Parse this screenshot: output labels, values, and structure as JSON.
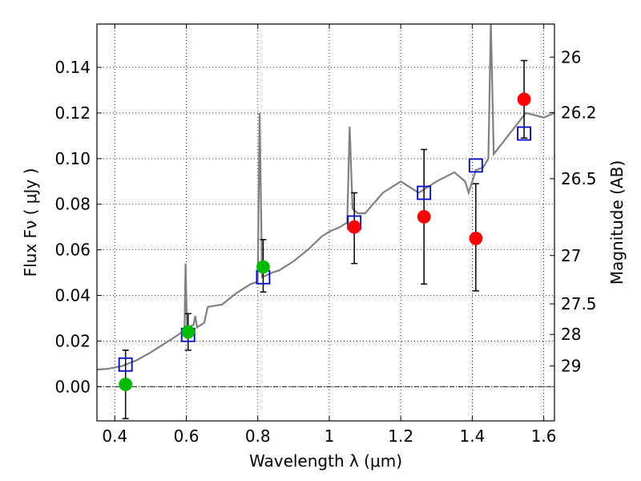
{
  "chart_data": {
    "type": "scatter",
    "xlabel": "Wavelength  λ (μm)",
    "ylabel_left": "Flux  Fν  ( μJy )",
    "ylabel_right": "Magnitude (AB)",
    "xlim": [
      0.35,
      1.63
    ],
    "ylim": [
      -0.015,
      0.159
    ],
    "x_ticks": [
      0.4,
      0.6,
      0.8,
      1.0,
      1.2,
      1.4,
      1.6
    ],
    "x_tick_labels": [
      "0.4",
      "0.6",
      "0.8",
      "1",
      "1.2",
      "1.4",
      "1.6"
    ],
    "y_ticks": [
      0.0,
      0.02,
      0.04,
      0.06,
      0.08,
      0.1,
      0.12,
      0.14
    ],
    "y_tick_labels": [
      "0.00",
      "0.02",
      "0.04",
      "0.06",
      "0.08",
      "0.10",
      "0.12",
      "0.14"
    ],
    "mag_ticks": [
      {
        "label": "26",
        "flux": 0.1445
      },
      {
        "label": "26.2",
        "flux": 0.1202
      },
      {
        "label": "26.5",
        "flux": 0.0912
      },
      {
        "label": "27",
        "flux": 0.0575
      },
      {
        "label": "27.5",
        "flux": 0.0363
      },
      {
        "label": "28",
        "flux": 0.0229
      },
      {
        "label": "29",
        "flux": 0.0091
      }
    ],
    "grid": true,
    "colors": {
      "spectrum": "#808080",
      "model_box": "#0000cc",
      "obs_green": "#00bb00",
      "obs_red": "#ff0000",
      "errorbar": "#000000"
    },
    "spectrum": [
      [
        0.35,
        0.0075
      ],
      [
        0.38,
        0.0078
      ],
      [
        0.42,
        0.009
      ],
      [
        0.46,
        0.0115
      ],
      [
        0.5,
        0.015
      ],
      [
        0.54,
        0.019
      ],
      [
        0.58,
        0.023
      ],
      [
        0.595,
        0.025
      ],
      [
        0.598,
        0.054
      ],
      [
        0.602,
        0.026
      ],
      [
        0.62,
        0.027
      ],
      [
        0.625,
        0.031
      ],
      [
        0.63,
        0.026
      ],
      [
        0.65,
        0.028
      ],
      [
        0.66,
        0.035
      ],
      [
        0.7,
        0.036
      ],
      [
        0.74,
        0.041
      ],
      [
        0.78,
        0.045
      ],
      [
        0.8,
        0.046
      ],
      [
        0.805,
        0.12
      ],
      [
        0.812,
        0.048
      ],
      [
        0.84,
        0.05
      ],
      [
        0.86,
        0.051
      ],
      [
        0.9,
        0.055
      ],
      [
        0.94,
        0.06
      ],
      [
        0.98,
        0.066
      ],
      [
        1.0,
        0.068
      ],
      [
        1.03,
        0.07
      ],
      [
        1.05,
        0.072
      ],
      [
        1.057,
        0.114
      ],
      [
        1.065,
        0.078
      ],
      [
        1.08,
        0.076
      ],
      [
        1.1,
        0.076
      ],
      [
        1.15,
        0.085
      ],
      [
        1.2,
        0.09
      ],
      [
        1.25,
        0.085
      ],
      [
        1.3,
        0.09
      ],
      [
        1.35,
        0.094
      ],
      [
        1.38,
        0.09
      ],
      [
        1.39,
        0.085
      ],
      [
        1.41,
        0.095
      ],
      [
        1.43,
        0.096
      ],
      [
        1.445,
        0.1
      ],
      [
        1.452,
        0.16
      ],
      [
        1.46,
        0.102
      ],
      [
        1.5,
        0.11
      ],
      [
        1.55,
        0.12
      ],
      [
        1.6,
        0.118
      ],
      [
        1.63,
        0.12
      ]
    ],
    "model_boxes": [
      {
        "x": 0.43,
        "y": 0.0097
      },
      {
        "x": 0.605,
        "y": 0.0227
      },
      {
        "x": 0.815,
        "y": 0.048
      },
      {
        "x": 1.07,
        "y": 0.072
      },
      {
        "x": 1.265,
        "y": 0.085
      },
      {
        "x": 1.41,
        "y": 0.097
      },
      {
        "x": 1.545,
        "y": 0.111
      }
    ],
    "observed": [
      {
        "x": 0.43,
        "y": 0.001,
        "err_low": 0.015,
        "err_high": 0.015,
        "color": "green"
      },
      {
        "x": 0.605,
        "y": 0.024,
        "err_low": 0.008,
        "err_high": 0.008,
        "color": "green"
      },
      {
        "x": 0.815,
        "y": 0.0525,
        "err_low": 0.011,
        "err_high": 0.012,
        "color": "green"
      },
      {
        "x": 1.07,
        "y": 0.07,
        "err_low": 0.016,
        "err_high": 0.015,
        "color": "red"
      },
      {
        "x": 1.265,
        "y": 0.0745,
        "err_low": 0.0295,
        "err_high": 0.0295,
        "color": "red"
      },
      {
        "x": 1.41,
        "y": 0.065,
        "err_low": 0.023,
        "err_high": 0.024,
        "color": "red"
      },
      {
        "x": 1.545,
        "y": 0.126,
        "err_low": 0.017,
        "err_high": 0.017,
        "color": "red"
      }
    ]
  }
}
